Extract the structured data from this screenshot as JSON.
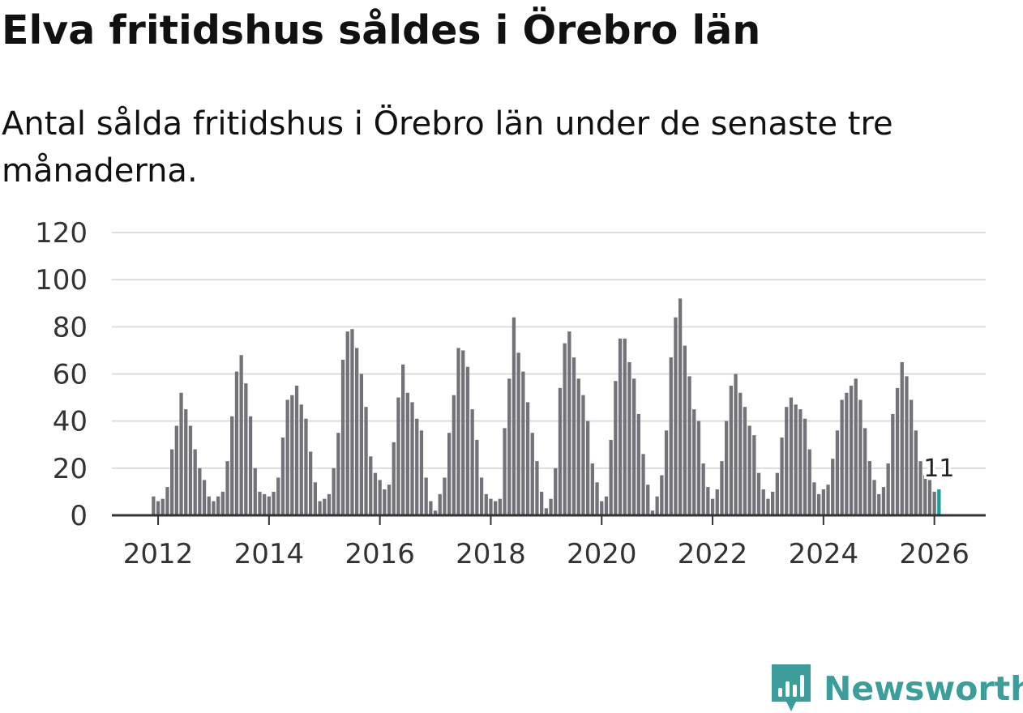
{
  "header": {
    "title": "Elva fritidshus såldes i Örebro län",
    "subtitle": "Antal sålda fritidshus i Örebro län under de senaste tre månaderna."
  },
  "brand": {
    "name": "Newsworthy",
    "color": "#3c9d9b",
    "icon": "newsworthy-logo-icon"
  },
  "colors": {
    "bar": "#737278",
    "highlight": "#1a9e96",
    "grid": "#dddddd",
    "axis": "#333333",
    "text": "#333333"
  },
  "chart_data": {
    "type": "bar",
    "title": "Elva fritidshus såldes i Örebro län",
    "subtitle": "Antal sålda fritidshus i Örebro län under de senaste tre månaderna.",
    "xlabel": "",
    "ylabel": "",
    "ylim": [
      0,
      120
    ],
    "yticks": [
      0,
      20,
      40,
      60,
      80,
      100,
      120
    ],
    "xticks": [
      "2012",
      "2014",
      "2016",
      "2018",
      "2020",
      "2022",
      "2024",
      "2026"
    ],
    "grid": true,
    "start": "2011-12",
    "frequency": "monthly",
    "highlight_label": "11",
    "series": [
      {
        "name": "Antal sålda fritidshus (tre månader)",
        "values": [
          8,
          6,
          7,
          12,
          28,
          38,
          52,
          45,
          38,
          28,
          20,
          15,
          8,
          6,
          8,
          10,
          23,
          42,
          61,
          68,
          56,
          42,
          20,
          10,
          9,
          8,
          10,
          16,
          33,
          49,
          51,
          55,
          47,
          41,
          27,
          14,
          6,
          7,
          9,
          20,
          35,
          66,
          78,
          79,
          71,
          60,
          46,
          25,
          18,
          15,
          11,
          13,
          31,
          50,
          64,
          52,
          48,
          41,
          36,
          16,
          6,
          2,
          9,
          16,
          35,
          51,
          71,
          70,
          63,
          45,
          32,
          16,
          9,
          7,
          6,
          7,
          37,
          58,
          84,
          69,
          61,
          48,
          35,
          23,
          10,
          3,
          7,
          20,
          54,
          73,
          78,
          67,
          58,
          51,
          40,
          22,
          14,
          6,
          8,
          32,
          57,
          75,
          75,
          65,
          58,
          43,
          26,
          13,
          2,
          8,
          17,
          36,
          67,
          84,
          92,
          72,
          59,
          45,
          40,
          22,
          12,
          7,
          11,
          23,
          40,
          55,
          60,
          52,
          46,
          38,
          34,
          18,
          11,
          7,
          10,
          18,
          33,
          46,
          50,
          47,
          45,
          41,
          28,
          14,
          9,
          11,
          13,
          24,
          36,
          49,
          52,
          55,
          58,
          49,
          37,
          23,
          15,
          9,
          12,
          22,
          43,
          54,
          65,
          59,
          49,
          36,
          23,
          17,
          15,
          10,
          11
        ]
      }
    ]
  }
}
